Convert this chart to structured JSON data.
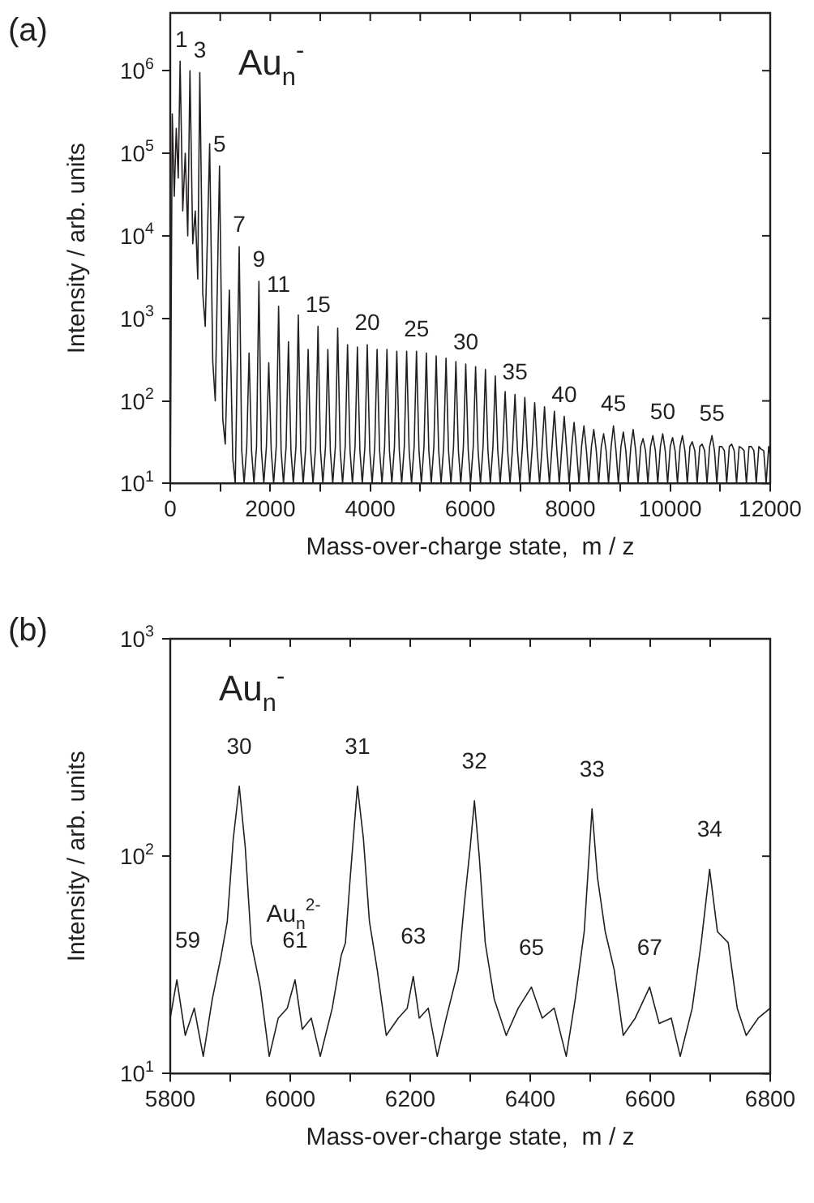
{
  "chart_data": [
    {
      "type": "line",
      "title": "(a)",
      "xlabel": "Mass-over-charge state,  m / z",
      "ylabel": "Intensity / arb. units",
      "log": "y",
      "xlim": [
        0,
        12000
      ],
      "ylim": [
        10,
        5000000
      ],
      "xticks": [
        0,
        {
          "value": 1000,
          "label": null
        },
        2000,
        {
          "value": 3000,
          "label": null
        },
        4000,
        {
          "value": 5000,
          "label": null
        },
        6000,
        {
          "value": 7000,
          "label": null
        },
        8000,
        {
          "value": 9000,
          "label": null
        },
        10000,
        {
          "value": 11000,
          "label": null
        },
        12000
      ],
      "yticks": [
        {
          "value": 10,
          "label": "10$^{1}$"
        },
        {
          "value": 100,
          "label": "10$^{2}$"
        },
        {
          "value": 1000,
          "label": "10$^{3}$"
        },
        {
          "value": 10000,
          "label": "10$^{4}$"
        },
        {
          "value": 100000,
          "label": "10$^{5}$"
        },
        {
          "value": 1000000,
          "label": "10$^{6}$"
        }
      ],
      "marker": "none",
      "line_style": "solid",
      "series": [
        {
          "color": "#231f20",
          "x": [
            0,
            40,
            80,
            120,
            160,
            197,
            250,
            300,
            350,
            394,
            450,
            500,
            550,
            591,
            650,
            700,
            788,
            850,
            900,
            985,
            1050,
            1100,
            1182,
            1250,
            1300,
            1379,
            1430,
            1477,
            1530,
            1576,
            1626,
            1674,
            1726,
            1773,
            1823,
            1871,
            1923,
            1970,
            2020,
            2068,
            2120,
            2167,
            2217,
            2265,
            2317,
            2364,
            2414,
            2462,
            2514,
            2561,
            2611,
            2659,
            2711,
            2758,
            2808,
            2856,
            2908,
            2955,
            3005,
            3053,
            3105,
            3152,
            3202,
            3250,
            3302,
            3349,
            3399,
            3447,
            3499,
            3546,
            3596,
            3644,
            3696,
            3743,
            3793,
            3841,
            3893,
            3940,
            3990,
            4038,
            4090,
            4137,
            4187,
            4235,
            4287,
            4334,
            4384,
            4432,
            4484,
            4531,
            4581,
            4629,
            4681,
            4728,
            4778,
            4826,
            4878,
            4925,
            4975,
            5023,
            5075,
            5122,
            5172,
            5220,
            5272,
            5319,
            5369,
            5417,
            5469,
            5516,
            5566,
            5614,
            5666,
            5713,
            5763,
            5811,
            5863,
            5910,
            5960,
            6008,
            6060,
            6107,
            6157,
            6205,
            6257,
            6304,
            6354,
            6402,
            6454,
            6501,
            6551,
            6599,
            6651,
            6698,
            6748,
            6796,
            6848,
            6895,
            6945,
            6993,
            7045,
            7092,
            7142,
            7190,
            7242,
            7289,
            7339,
            7387,
            7439,
            7486,
            7536,
            7584,
            7636,
            7683,
            7733,
            7781,
            7833,
            7880,
            7930,
            7978,
            8030,
            8077,
            8127,
            8175,
            8227,
            8274,
            8324,
            8372,
            8424,
            8471,
            8521,
            8569,
            8621,
            8668,
            8718,
            8766,
            8818,
            8865,
            8915,
            8963,
            9015,
            9062,
            9112,
            9160,
            9212,
            9259,
            9309,
            9357,
            9409,
            9456,
            9506,
            9554,
            9606,
            9653,
            9703,
            9751,
            9803,
            9850,
            9900,
            9948,
            10000,
            10047,
            10097,
            10145,
            10197,
            10244,
            10294,
            10342,
            10394,
            10441,
            10491,
            10539,
            10591,
            10638,
            10688,
            10736,
            10788,
            10835,
            10885,
            10933,
            10985,
            11032,
            11082,
            11130,
            11182,
            11229,
            11279,
            11327,
            11379,
            11426,
            11476,
            11524,
            11576,
            11623,
            11673,
            11721,
            11773,
            11820,
            11870,
            11918,
            11970,
            12000
          ],
          "values": [
            10,
            300000,
            30000,
            200000,
            50000,
            1300000,
            20000,
            100000,
            10000,
            1000000,
            8000,
            20000,
            3000,
            950000,
            2000,
            800,
            130000,
            300,
            100,
            70000,
            60,
            30,
            2200,
            20,
            10,
            7400,
            25,
            10,
            28,
            380,
            25,
            10,
            28,
            2800,
            25,
            10,
            28,
            290,
            25,
            10,
            28,
            1400,
            25,
            10,
            28,
            520,
            25,
            10,
            28,
            1100,
            25,
            10,
            28,
            420,
            25,
            10,
            28,
            800,
            25,
            10,
            28,
            420,
            25,
            10,
            28,
            760,
            25,
            10,
            28,
            480,
            25,
            10,
            28,
            450,
            25,
            10,
            28,
            480,
            25,
            10,
            28,
            420,
            25,
            10,
            28,
            420,
            25,
            10,
            28,
            400,
            25,
            10,
            28,
            400,
            25,
            10,
            28,
            400,
            25,
            10,
            28,
            380,
            25,
            10,
            28,
            350,
            25,
            10,
            28,
            330,
            25,
            10,
            28,
            300,
            25,
            10,
            28,
            280,
            25,
            10,
            28,
            260,
            25,
            10,
            28,
            240,
            25,
            10,
            28,
            200,
            25,
            10,
            28,
            130,
            25,
            10,
            28,
            120,
            25,
            10,
            28,
            110,
            25,
            10,
            28,
            95,
            25,
            10,
            28,
            85,
            25,
            10,
            28,
            75,
            25,
            10,
            28,
            65,
            25,
            10,
            28,
            55,
            25,
            10,
            28,
            50,
            25,
            10,
            28,
            45,
            25,
            10,
            28,
            40,
            25,
            10,
            28,
            50,
            25,
            10,
            28,
            42,
            25,
            10,
            28,
            45,
            25,
            10,
            28,
            35,
            25,
            10,
            28,
            38,
            25,
            10,
            28,
            40,
            25,
            10,
            28,
            36,
            25,
            10,
            28,
            38,
            25,
            10,
            28,
            32,
            25,
            10,
            28,
            30,
            25,
            10,
            28,
            38,
            25,
            10,
            28,
            28,
            25,
            10,
            28,
            30,
            25,
            10,
            28,
            27,
            25,
            10,
            28,
            28,
            25,
            10,
            28,
            26,
            25,
            10,
            28,
            22
          ]
        }
      ],
      "annotations": [
        "Au$_{n}$$^{-}$",
        {
          "text": "1",
          "x": 197,
          "y": 1300000
        },
        {
          "text": "3",
          "x": 591,
          "y": 950000
        },
        {
          "text": "5",
          "x": 985,
          "y": 70000
        },
        {
          "text": "7",
          "x": 1379,
          "y": 7400
        },
        {
          "text": "9",
          "x": 1773,
          "y": 2800
        },
        {
          "text": "11",
          "x": 2167,
          "y": 1400
        },
        {
          "text": "15",
          "x": 2955,
          "y": 800
        },
        {
          "text": "20",
          "x": 3940,
          "y": 480
        },
        {
          "text": "25",
          "x": 4925,
          "y": 400
        },
        {
          "text": "30",
          "x": 5910,
          "y": 280
        },
        {
          "text": "35",
          "x": 6895,
          "y": 120
        },
        {
          "text": "40",
          "x": 7880,
          "y": 65
        },
        {
          "text": "45",
          "x": 8865,
          "y": 50
        },
        {
          "text": "50",
          "x": 9850,
          "y": 40
        },
        {
          "text": "55",
          "x": 10835,
          "y": 38
        }
      ]
    },
    {
      "type": "line",
      "title": "(b)",
      "xlabel": "Mass-over-charge state,  m / z",
      "ylabel": "Intensity / arb. units",
      "log": "y",
      "xlim": [
        5800,
        6800
      ],
      "ylim": [
        10,
        1000
      ],
      "xticks": [
        5800,
        {
          "value": 5900,
          "label": null
        },
        6000,
        {
          "value": 6100,
          "label": null
        },
        6200,
        {
          "value": 6300,
          "label": null
        },
        6400,
        {
          "value": 6500,
          "label": null
        },
        6600,
        {
          "value": 6700,
          "label": null
        },
        6800
      ],
      "yticks": [
        {
          "value": 10,
          "label": "10$^{1}$"
        },
        {
          "value": 100,
          "label": "10$^{2}$"
        },
        {
          "value": 1000,
          "label": "10$^{3}$"
        }
      ],
      "marker": "none",
      "line_style": "solid",
      "series": [
        {
          "color": "#231f20",
          "x": [
            5800,
            5811,
            5825,
            5840,
            5855,
            5870,
            5885,
            5895,
            5905,
            5915,
            5925,
            5935,
            5950,
            5965,
            5980,
            5995,
            6008,
            6020,
            6035,
            6050,
            6070,
            6085,
            6092,
            6100,
            6112,
            6122,
            6132,
            6145,
            6160,
            6180,
            6195,
            6205,
            6215,
            6230,
            6245,
            6260,
            6280,
            6290,
            6300,
            6307,
            6315,
            6325,
            6340,
            6360,
            6380,
            6402,
            6420,
            6440,
            6460,
            6475,
            6490,
            6503,
            6512,
            6525,
            6540,
            6555,
            6575,
            6599,
            6615,
            6635,
            6650,
            6670,
            6685,
            6699,
            6712,
            6730,
            6745,
            6760,
            6780,
            6800
          ],
          "values": [
            18,
            27,
            15,
            20,
            12,
            22,
            35,
            50,
            120,
            210,
            110,
            40,
            25,
            12,
            18,
            20,
            27,
            16,
            18,
            12,
            20,
            35,
            40,
            80,
            210,
            120,
            50,
            30,
            15,
            18,
            20,
            28,
            18,
            20,
            12,
            18,
            30,
            60,
            110,
            180,
            100,
            40,
            22,
            15,
            20,
            25,
            18,
            20,
            12,
            22,
            45,
            165,
            80,
            45,
            30,
            15,
            18,
            25,
            17,
            18,
            12,
            20,
            40,
            87,
            45,
            40,
            20,
            15,
            18,
            20
          ]
        }
      ],
      "annotations": [
        "Au$_{n}$$^{-}$",
        {
          "text": "30",
          "x": 5915,
          "y": 210
        },
        {
          "text": "31",
          "x": 6112,
          "y": 210
        },
        {
          "text": "32",
          "x": 6307,
          "y": 180
        },
        {
          "text": "33",
          "x": 6503,
          "y": 165
        },
        {
          "text": "34",
          "x": 6699,
          "y": 87
        },
        "Au$_{n}$$^{2-}$",
        {
          "text": "59",
          "x": 5811,
          "y": 27
        },
        {
          "text": "61",
          "x": 6008,
          "y": 27
        },
        {
          "text": "63",
          "x": 6205,
          "y": 28
        },
        {
          "text": "65",
          "x": 6402,
          "y": 25
        },
        {
          "text": "67",
          "x": 6599,
          "y": 25
        }
      ]
    }
  ]
}
